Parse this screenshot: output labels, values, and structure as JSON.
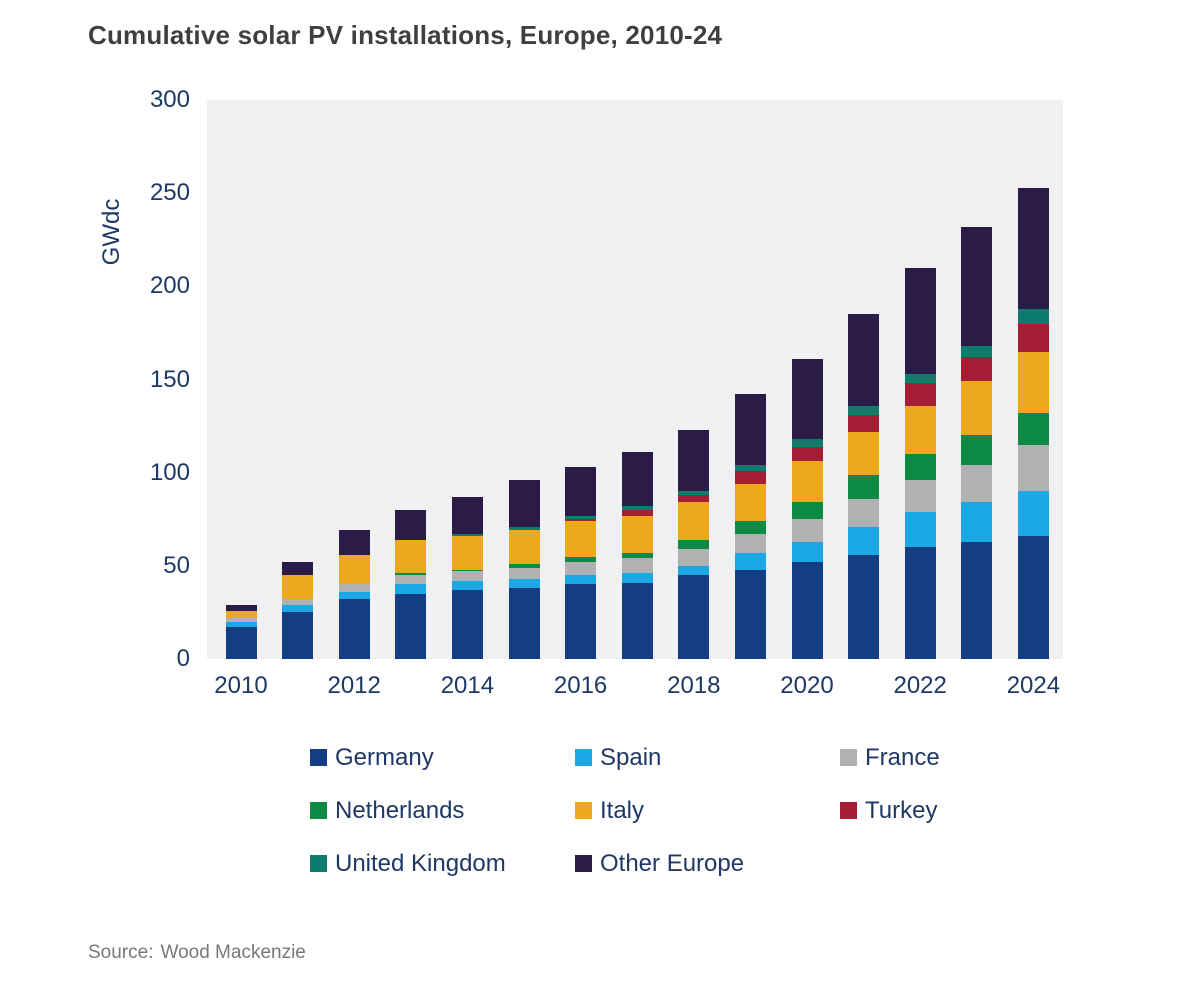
{
  "header": {
    "title": "Cumulative solar PV installations, Europe, 2010-24"
  },
  "chart_data": {
    "type": "bar",
    "stacked": true,
    "title": "Cumulative solar PV installations, Europe, 2010-24",
    "xlabel": "",
    "ylabel": "GWdc",
    "ylim": [
      0,
      300
    ],
    "y_ticks": [
      0,
      50,
      100,
      150,
      200,
      250,
      300
    ],
    "grid": false,
    "legend_position": "bottom",
    "plot_background": "#f0eff1",
    "axis_text_color": "#1f3864",
    "categories": [
      "2010",
      "2011",
      "2012",
      "2013",
      "2014",
      "2015",
      "2016",
      "2017",
      "2018",
      "2019",
      "2020",
      "2021",
      "2022",
      "2023",
      "2024"
    ],
    "x_tick_labels": [
      "2010",
      "2012",
      "2014",
      "2016",
      "2018",
      "2020",
      "2022",
      "2024"
    ],
    "series": [
      {
        "name": "Germany",
        "color": "#143e82",
        "values": [
          17,
          25,
          32,
          35,
          37,
          38,
          40,
          41,
          45,
          48,
          52,
          56,
          60,
          63,
          66
        ]
      },
      {
        "name": "Spain",
        "color": "#1ba8e4",
        "values": [
          3,
          4,
          4,
          5,
          5,
          5,
          5,
          5,
          5,
          9,
          11,
          15,
          19,
          21,
          24
        ]
      },
      {
        "name": "France",
        "color": "#b1b1b4",
        "values": [
          2,
          3,
          4,
          5,
          5,
          6,
          7,
          8,
          9,
          10,
          12,
          15,
          17,
          20,
          25
        ]
      },
      {
        "name": "Netherlands",
        "color": "#0d8a44",
        "values": [
          0,
          0,
          0,
          1,
          1,
          2,
          3,
          3,
          5,
          7,
          9,
          13,
          14,
          16,
          17
        ]
      },
      {
        "name": "Italy",
        "color": "#eca91e",
        "values": [
          4,
          13,
          16,
          18,
          18,
          18,
          19,
          20,
          20,
          20,
          22,
          23,
          26,
          29,
          33
        ]
      },
      {
        "name": "Turkey",
        "color": "#a51e36",
        "values": [
          0,
          0,
          0,
          0,
          0,
          0,
          1,
          3,
          4,
          7,
          8,
          9,
          12,
          13,
          15
        ]
      },
      {
        "name": "United Kingdom",
        "color": "#0d7b6d",
        "values": [
          0,
          0,
          0,
          0,
          1,
          2,
          2,
          2,
          2,
          3,
          4,
          5,
          5,
          6,
          8
        ]
      },
      {
        "name": "Other Europe",
        "color": "#2b1b47",
        "values": [
          3,
          7,
          13,
          16,
          20,
          25,
          26,
          29,
          33,
          38,
          43,
          49,
          57,
          64,
          65
        ]
      }
    ],
    "totals": [
      29,
      52,
      69,
      80,
      87,
      96,
      103,
      111,
      123,
      142,
      161,
      185,
      210,
      232,
      253
    ]
  },
  "footer": {
    "source_label": "Source:",
    "source_value": "Wood Mackenzie"
  }
}
